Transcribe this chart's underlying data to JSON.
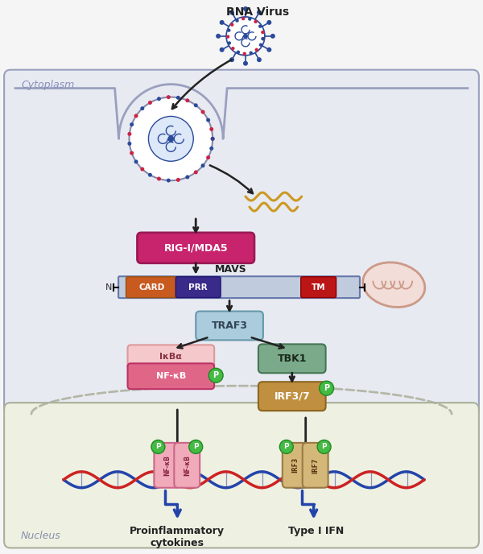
{
  "fig_w": 6.0,
  "fig_h": 6.88,
  "dpi": 100,
  "bg_color": "#f5f5f5",
  "cytoplasm_bg": "#e8eaf2",
  "nucleus_bg": "#eef0e2",
  "cell_membrane_color": "#9aa0be",
  "nucleus_dash_color": "#aab09a",
  "title_rna_virus": "RNA Virus",
  "cytoplasm_label": "Cytoplasm",
  "nucleus_label": "Nucleus",
  "virus_color": "#2a4a9a",
  "rna_label": "RIG-I/MDA5",
  "rna_bg": "#c8246e",
  "rna_outline": "#9a1a55",
  "mavs_label": "MAVS",
  "card_label": "CARD",
  "card_color": "#c85a20",
  "prr_label": "PRR",
  "prr_color": "#3a2a8a",
  "tm_label": "TM",
  "tm_color": "#bb1515",
  "mavs_bar_color": "#c0ccdd",
  "mavs_bar_outline": "#6677aa",
  "traf3_label": "TRAF3",
  "traf3_bg": "#aaccdd",
  "traf3_outline": "#6699aa",
  "tbk1_label": "TBK1",
  "tbk1_bg": "#7aaa8a",
  "tbk1_outline": "#447755",
  "ikba_label": "IκBα",
  "nfkb_label": "NF-κB",
  "ikba_bg": "#f5c8cc",
  "nfkb_bg": "#e06688",
  "irf37_label": "IRF3/7",
  "irf37_bg": "#c09040",
  "irf37_outline": "#8a6620",
  "phospho_color": "#44bb44",
  "phospho_label": "P",
  "nfkb1_label": "NF-κB",
  "nfkb2_label": "NF-κB",
  "irf3_label": "IRF3",
  "irf7_label": "IRF7",
  "nfkb_dimer_color": "#f0aaba",
  "nfkb_dimer_outline": "#cc6688",
  "irf_dimer_color": "#d4b87a",
  "irf_dimer_outline": "#9a7a44",
  "proinflam_label": "Proinflammatory\ncytokines",
  "typeifn_label": "Type I IFN",
  "dna_blue": "#2244aa",
  "dna_red": "#cc2222",
  "mito_outline": "#cc9988",
  "mito_fill": "#f2ddd8",
  "arrow_color": "#222222",
  "text_color": "#222222",
  "rna_squiggle_color": "#cc9922"
}
